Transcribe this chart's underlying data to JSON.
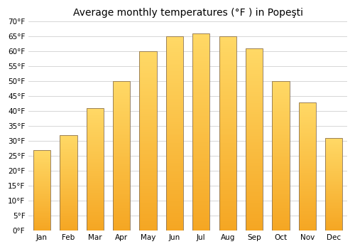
{
  "title": "Average monthly temperatures (°F ) in Popeşti",
  "months": [
    "Jan",
    "Feb",
    "Mar",
    "Apr",
    "May",
    "Jun",
    "Jul",
    "Aug",
    "Sep",
    "Oct",
    "Nov",
    "Dec"
  ],
  "values": [
    27,
    32,
    41,
    50,
    60,
    65,
    66,
    65,
    61,
    50,
    43,
    31
  ],
  "bar_color_bottom": "#F5A623",
  "bar_color_top": "#FFD966",
  "bar_edge_color": "#8B7355",
  "ylim": [
    0,
    70
  ],
  "yticks": [
    0,
    5,
    10,
    15,
    20,
    25,
    30,
    35,
    40,
    45,
    50,
    55,
    60,
    65,
    70
  ],
  "ytick_labels": [
    "0°F",
    "5°F",
    "10°F",
    "15°F",
    "20°F",
    "25°F",
    "30°F",
    "35°F",
    "40°F",
    "45°F",
    "50°F",
    "55°F",
    "60°F",
    "65°F",
    "70°F"
  ],
  "background_color": "#ffffff",
  "grid_color": "#d0d0d0",
  "title_fontsize": 10,
  "tick_fontsize": 7.5,
  "bar_width": 0.65
}
